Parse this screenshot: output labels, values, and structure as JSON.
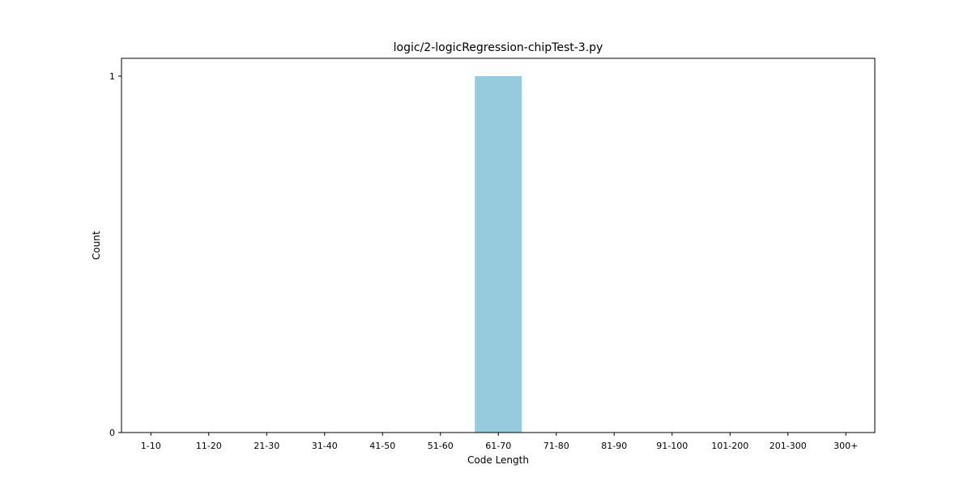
{
  "chart_data": {
    "type": "bar",
    "title": "logic/2-logicRegression-chipTest-3.py",
    "xlabel": "Code Length",
    "ylabel": "Count",
    "categories": [
      "1-10",
      "11-20",
      "21-30",
      "31-40",
      "41-50",
      "51-60",
      "61-70",
      "71-80",
      "81-90",
      "91-100",
      "101-200",
      "201-300",
      "300+"
    ],
    "values": [
      0,
      0,
      0,
      0,
      0,
      0,
      1,
      0,
      0,
      0,
      0,
      0,
      0
    ],
    "yticks": [
      0,
      1
    ],
    "ylim": [
      0,
      1.05
    ],
    "grid": false,
    "legend": false,
    "bar_color": "#96cadd"
  }
}
